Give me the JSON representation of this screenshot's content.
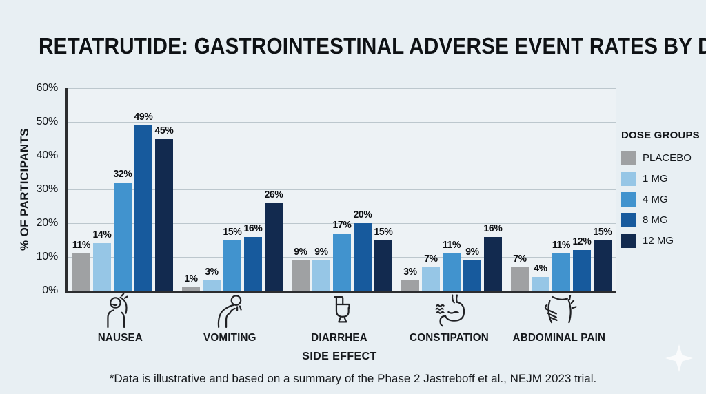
{
  "legend_title": "DOSE GROUPS",
  "footnote": "*Data is illustrative and based on a summary of the Phase 2 Jastreboff et al., NEJM 2023 trial.",
  "colors": {
    "background": "#e8eff3",
    "plot_background": "#edf2f5",
    "gridline": "#bcc7cd",
    "axis": "#2c2d2f",
    "text": "#101418",
    "placebo": "#9fa1a3",
    "dose_1mg": "#96c6e6",
    "dose_4mg": "#4193ce",
    "dose_8mg": "#175a9d",
    "dose_12mg": "#122a4f"
  },
  "chart_data": {
    "type": "bar",
    "title": "RETATRUTIDE: GASTROINTESTINAL ADVERSE EVENT RATES BY DOSE",
    "xlabel": "SIDE EFFECT",
    "ylabel": "% OF PARTICIPANTS",
    "ylim": [
      0,
      60
    ],
    "ytick_step": 10,
    "value_suffix": "%",
    "grid": true,
    "legend_position": "right",
    "categories": [
      "NAUSEA",
      "VOMITING",
      "DIARRHEA",
      "CONSTIPATION",
      "ABDOMINAL PAIN"
    ],
    "category_icons": [
      "nausea-icon",
      "vomiting-icon",
      "diarrhea-icon",
      "constipation-icon",
      "abdominal-pain-icon"
    ],
    "series": [
      {
        "name": "PLACEBO",
        "color": "#9fa1a3",
        "values": [
          11,
          1,
          9,
          3,
          7
        ]
      },
      {
        "name": "1 MG",
        "color": "#96c6e6",
        "values": [
          14,
          3,
          9,
          7,
          4
        ]
      },
      {
        "name": "4 MG",
        "color": "#4193ce",
        "values": [
          32,
          15,
          17,
          11,
          11
        ]
      },
      {
        "name": "8 MG",
        "color": "#175a9d",
        "values": [
          49,
          16,
          20,
          9,
          12
        ]
      },
      {
        "name": "12 MG",
        "color": "#122a4f",
        "values": [
          45,
          26,
          15,
          16,
          15
        ]
      }
    ]
  }
}
